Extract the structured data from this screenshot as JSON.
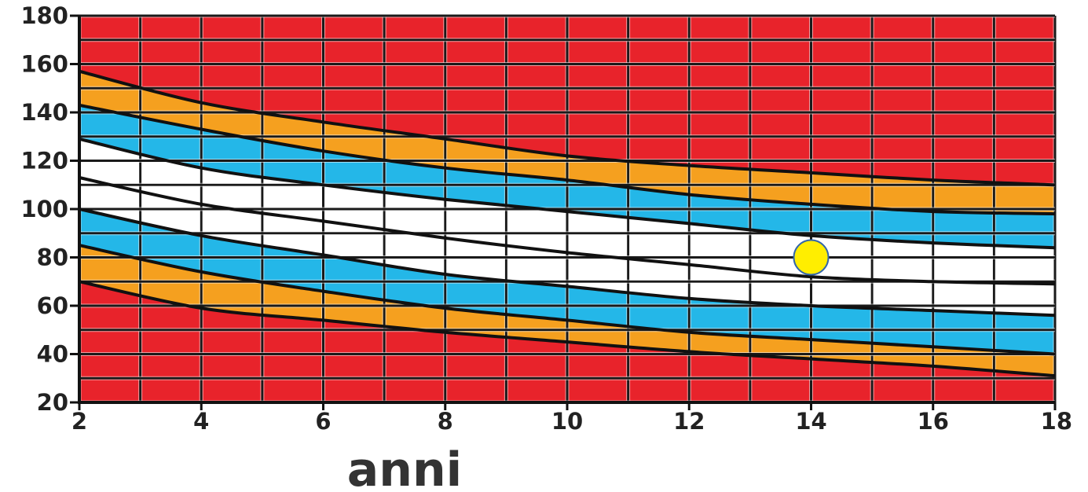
{
  "chart_data": {
    "type": "area",
    "xlabel": "anni",
    "ylabel": "",
    "xlim": [
      2,
      18
    ],
    "ylim": [
      20,
      180
    ],
    "x_ticks": [
      "2",
      "4",
      "6",
      "8",
      "10",
      "12",
      "14",
      "16",
      "18"
    ],
    "y_ticks": [
      "20",
      "40",
      "60",
      "80",
      "100",
      "120",
      "140",
      "160",
      "180"
    ],
    "grid": true,
    "x_samples": [
      2,
      4,
      6,
      8,
      10,
      12,
      14,
      16,
      18
    ],
    "boundaries": [
      [
        70,
        59,
        54,
        49,
        45,
        41,
        38,
        35,
        31
      ],
      [
        85,
        74,
        66,
        59,
        54,
        49,
        46,
        43,
        40
      ],
      [
        100,
        89,
        81,
        73,
        68,
        63,
        60,
        58,
        56
      ],
      [
        113,
        102,
        95,
        88,
        82,
        77,
        72,
        70,
        69
      ],
      [
        129,
        117,
        110,
        104,
        99,
        94,
        89,
        86,
        84
      ],
      [
        143,
        133,
        124,
        117,
        112,
        106,
        102,
        99,
        98
      ],
      [
        157,
        144,
        136,
        129,
        122,
        118,
        115,
        112,
        110
      ]
    ],
    "bands": [
      {
        "color": "#e8232b",
        "lower": null,
        "upper": 0
      },
      {
        "color": "#f5a01f",
        "lower": 0,
        "upper": 1
      },
      {
        "color": "#24b7e8",
        "lower": 1,
        "upper": 2
      },
      {
        "color": "#ffffff",
        "lower": 2,
        "upper": 3
      },
      {
        "color": "#ffffff",
        "lower": 3,
        "upper": 4
      },
      {
        "color": "#24b7e8",
        "lower": 4,
        "upper": 5
      },
      {
        "color": "#f5a01f",
        "lower": 5,
        "upper": 6
      },
      {
        "color": "#e8232b",
        "lower": 6,
        "upper": null
      }
    ],
    "marker": {
      "x": 14,
      "y": 80,
      "color": "#ffee00"
    }
  }
}
